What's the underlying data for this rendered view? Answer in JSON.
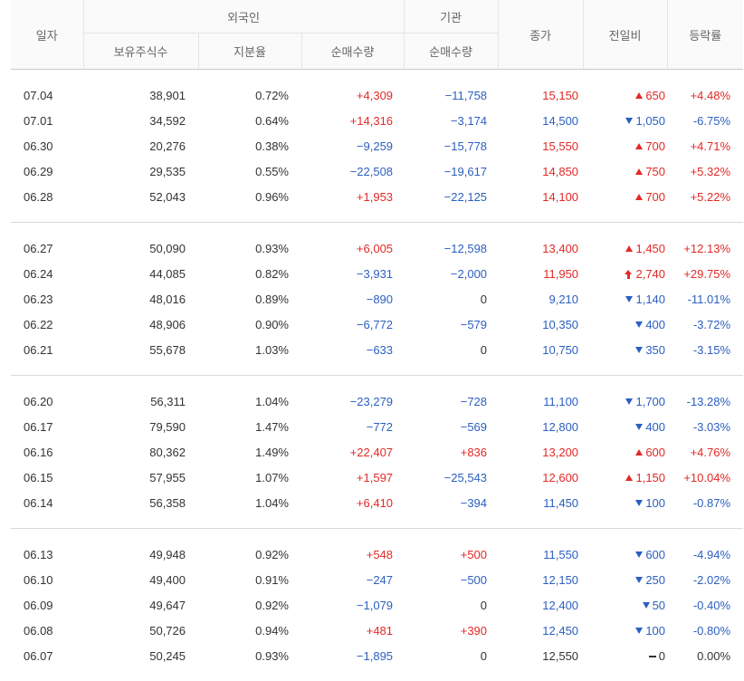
{
  "headers": {
    "date": "일자",
    "foreign": "외국인",
    "institution": "기관",
    "close": "종가",
    "change": "전일비",
    "rate": "등락률",
    "holdings": "보유주식수",
    "ratio": "지분율",
    "foreign_net": "순매수량",
    "inst_net": "순매수량"
  },
  "colors": {
    "up": "#e22926",
    "down": "#2b5fc1",
    "flat": "#333333"
  },
  "groups": [
    [
      {
        "date": "07.04",
        "holdings": "38,901",
        "ratio": "0.72%",
        "foreign_net": "+4,309",
        "foreign_dir": "up",
        "inst_net": "−11,758",
        "inst_dir": "down",
        "close": "15,150",
        "close_dir": "up",
        "change": "650",
        "arrow": "up",
        "rate": "+4.48%",
        "rate_dir": "up"
      },
      {
        "date": "07.01",
        "holdings": "34,592",
        "ratio": "0.64%",
        "foreign_net": "+14,316",
        "foreign_dir": "up",
        "inst_net": "−3,174",
        "inst_dir": "down",
        "close": "14,500",
        "close_dir": "down",
        "change": "1,050",
        "arrow": "down",
        "rate": "-6.75%",
        "rate_dir": "down"
      },
      {
        "date": "06.30",
        "holdings": "20,276",
        "ratio": "0.38%",
        "foreign_net": "−9,259",
        "foreign_dir": "down",
        "inst_net": "−15,778",
        "inst_dir": "down",
        "close": "15,550",
        "close_dir": "up",
        "change": "700",
        "arrow": "up",
        "rate": "+4.71%",
        "rate_dir": "up"
      },
      {
        "date": "06.29",
        "holdings": "29,535",
        "ratio": "0.55%",
        "foreign_net": "−22,508",
        "foreign_dir": "down",
        "inst_net": "−19,617",
        "inst_dir": "down",
        "close": "14,850",
        "close_dir": "up",
        "change": "750",
        "arrow": "up",
        "rate": "+5.32%",
        "rate_dir": "up"
      },
      {
        "date": "06.28",
        "holdings": "52,043",
        "ratio": "0.96%",
        "foreign_net": "+1,953",
        "foreign_dir": "up",
        "inst_net": "−22,125",
        "inst_dir": "down",
        "close": "14,100",
        "close_dir": "up",
        "change": "700",
        "arrow": "up",
        "rate": "+5.22%",
        "rate_dir": "up"
      }
    ],
    [
      {
        "date": "06.27",
        "holdings": "50,090",
        "ratio": "0.93%",
        "foreign_net": "+6,005",
        "foreign_dir": "up",
        "inst_net": "−12,598",
        "inst_dir": "down",
        "close": "13,400",
        "close_dir": "up",
        "change": "1,450",
        "arrow": "up",
        "rate": "+12.13%",
        "rate_dir": "up"
      },
      {
        "date": "06.24",
        "holdings": "44,085",
        "ratio": "0.82%",
        "foreign_net": "−3,931",
        "foreign_dir": "down",
        "inst_net": "−2,000",
        "inst_dir": "down",
        "close": "11,950",
        "close_dir": "up",
        "change": "2,740",
        "arrow": "upper",
        "rate": "+29.75%",
        "rate_dir": "up"
      },
      {
        "date": "06.23",
        "holdings": "48,016",
        "ratio": "0.89%",
        "foreign_net": "−890",
        "foreign_dir": "down",
        "inst_net": "0",
        "inst_dir": "flat",
        "close": "9,210",
        "close_dir": "down",
        "change": "1,140",
        "arrow": "down",
        "rate": "-11.01%",
        "rate_dir": "down"
      },
      {
        "date": "06.22",
        "holdings": "48,906",
        "ratio": "0.90%",
        "foreign_net": "−6,772",
        "foreign_dir": "down",
        "inst_net": "−579",
        "inst_dir": "down",
        "close": "10,350",
        "close_dir": "down",
        "change": "400",
        "arrow": "down",
        "rate": "-3.72%",
        "rate_dir": "down"
      },
      {
        "date": "06.21",
        "holdings": "55,678",
        "ratio": "1.03%",
        "foreign_net": "−633",
        "foreign_dir": "down",
        "inst_net": "0",
        "inst_dir": "flat",
        "close": "10,750",
        "close_dir": "down",
        "change": "350",
        "arrow": "down",
        "rate": "-3.15%",
        "rate_dir": "down"
      }
    ],
    [
      {
        "date": "06.20",
        "holdings": "56,311",
        "ratio": "1.04%",
        "foreign_net": "−23,279",
        "foreign_dir": "down",
        "inst_net": "−728",
        "inst_dir": "down",
        "close": "11,100",
        "close_dir": "down",
        "change": "1,700",
        "arrow": "down",
        "rate": "-13.28%",
        "rate_dir": "down"
      },
      {
        "date": "06.17",
        "holdings": "79,590",
        "ratio": "1.47%",
        "foreign_net": "−772",
        "foreign_dir": "down",
        "inst_net": "−569",
        "inst_dir": "down",
        "close": "12,800",
        "close_dir": "down",
        "change": "400",
        "arrow": "down",
        "rate": "-3.03%",
        "rate_dir": "down"
      },
      {
        "date": "06.16",
        "holdings": "80,362",
        "ratio": "1.49%",
        "foreign_net": "+22,407",
        "foreign_dir": "up",
        "inst_net": "+836",
        "inst_dir": "up",
        "close": "13,200",
        "close_dir": "up",
        "change": "600",
        "arrow": "up",
        "rate": "+4.76%",
        "rate_dir": "up"
      },
      {
        "date": "06.15",
        "holdings": "57,955",
        "ratio": "1.07%",
        "foreign_net": "+1,597",
        "foreign_dir": "up",
        "inst_net": "−25,543",
        "inst_dir": "down",
        "close": "12,600",
        "close_dir": "up",
        "change": "1,150",
        "arrow": "up",
        "rate": "+10.04%",
        "rate_dir": "up"
      },
      {
        "date": "06.14",
        "holdings": "56,358",
        "ratio": "1.04%",
        "foreign_net": "+6,410",
        "foreign_dir": "up",
        "inst_net": "−394",
        "inst_dir": "down",
        "close": "11,450",
        "close_dir": "down",
        "change": "100",
        "arrow": "down",
        "rate": "-0.87%",
        "rate_dir": "down"
      }
    ],
    [
      {
        "date": "06.13",
        "holdings": "49,948",
        "ratio": "0.92%",
        "foreign_net": "+548",
        "foreign_dir": "up",
        "inst_net": "+500",
        "inst_dir": "up",
        "close": "11,550",
        "close_dir": "down",
        "change": "600",
        "arrow": "down",
        "rate": "-4.94%",
        "rate_dir": "down"
      },
      {
        "date": "06.10",
        "holdings": "49,400",
        "ratio": "0.91%",
        "foreign_net": "−247",
        "foreign_dir": "down",
        "inst_net": "−500",
        "inst_dir": "down",
        "close": "12,150",
        "close_dir": "down",
        "change": "250",
        "arrow": "down",
        "rate": "-2.02%",
        "rate_dir": "down"
      },
      {
        "date": "06.09",
        "holdings": "49,647",
        "ratio": "0.92%",
        "foreign_net": "−1,079",
        "foreign_dir": "down",
        "inst_net": "0",
        "inst_dir": "flat",
        "close": "12,400",
        "close_dir": "down",
        "change": "50",
        "arrow": "down",
        "rate": "-0.40%",
        "rate_dir": "down"
      },
      {
        "date": "06.08",
        "holdings": "50,726",
        "ratio": "0.94%",
        "foreign_net": "+481",
        "foreign_dir": "up",
        "inst_net": "+390",
        "inst_dir": "up",
        "close": "12,450",
        "close_dir": "down",
        "change": "100",
        "arrow": "down",
        "rate": "-0.80%",
        "rate_dir": "down"
      },
      {
        "date": "06.07",
        "holdings": "50,245",
        "ratio": "0.93%",
        "foreign_net": "−1,895",
        "foreign_dir": "down",
        "inst_net": "0",
        "inst_dir": "flat",
        "close": "12,550",
        "close_dir": "flat",
        "change": "0",
        "arrow": "flat",
        "rate": "0.00%",
        "rate_dir": "flat"
      }
    ]
  ]
}
